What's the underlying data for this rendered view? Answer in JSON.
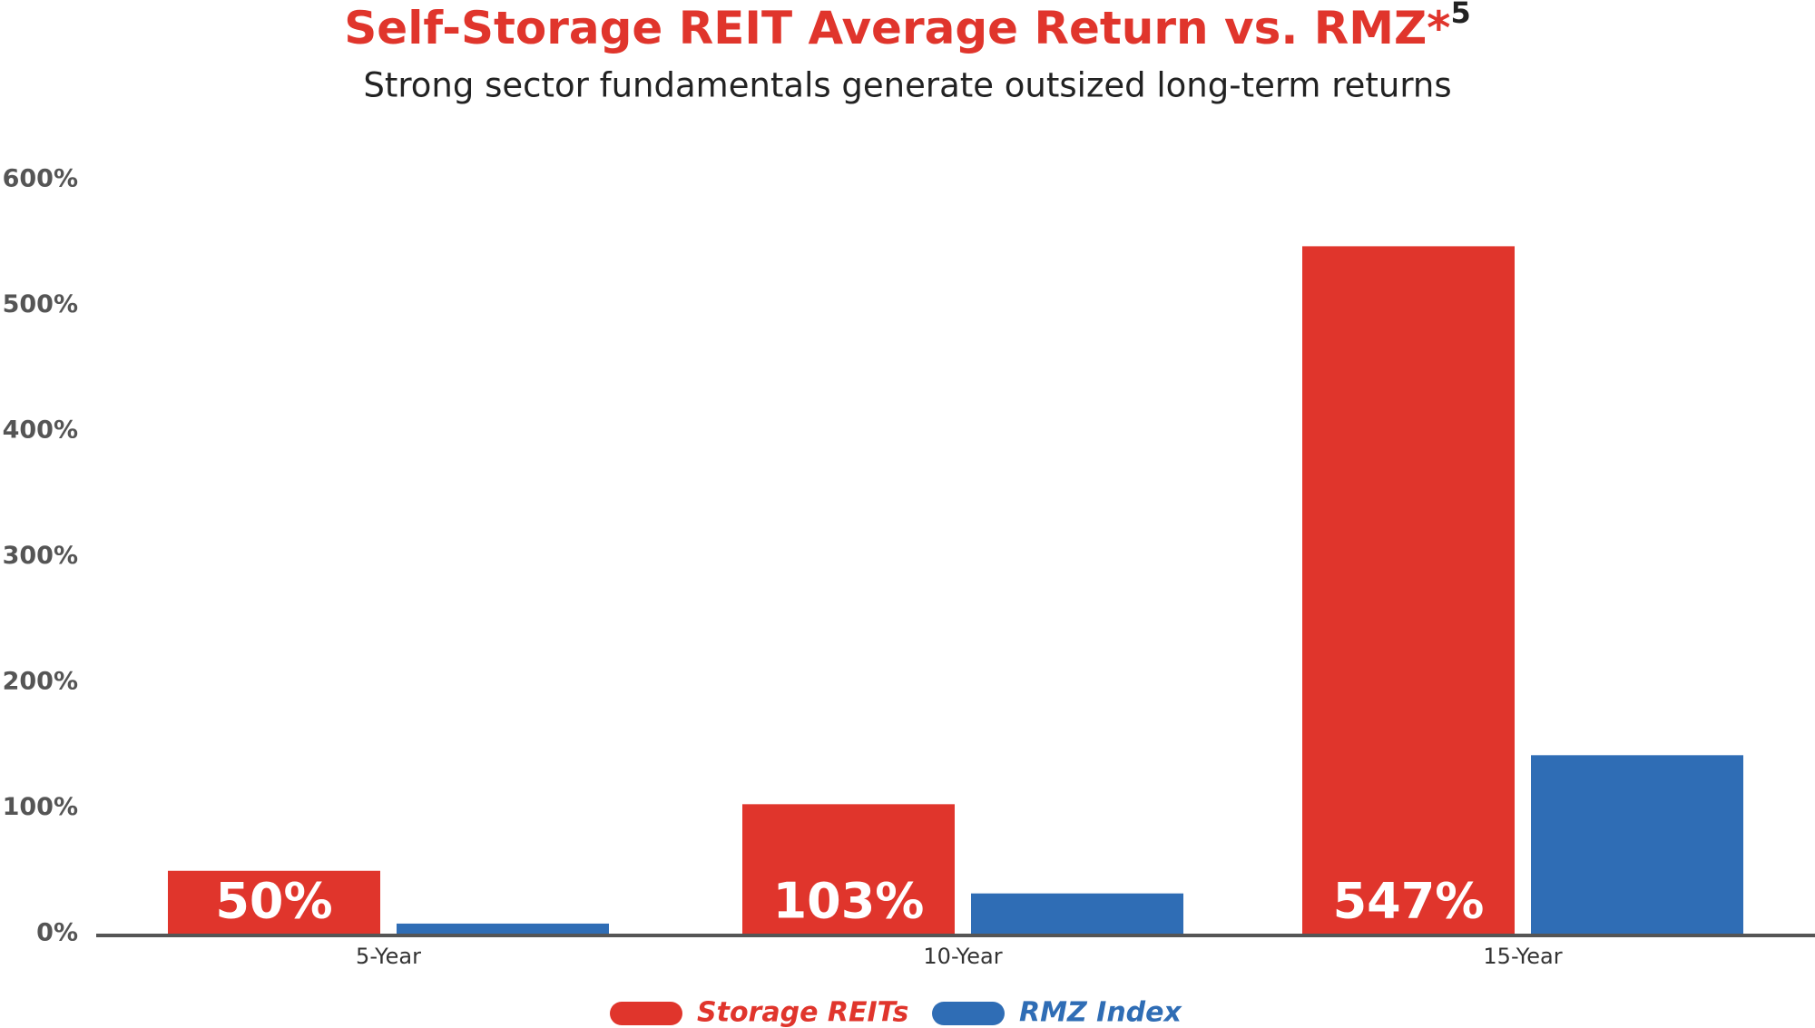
{
  "chart_data": {
    "type": "bar",
    "title": "Self-Storage REIT Average Return vs. RMZ*",
    "title_superscript": "5",
    "subtitle": "Strong sector fundamentals generate outsized long-term returns",
    "categories": [
      "5-Year",
      "10-Year",
      "15-Year"
    ],
    "series": [
      {
        "name": "Storage REITs",
        "color": "#e0352c",
        "values": [
          50,
          103,
          547
        ],
        "value_labels": [
          "50%",
          "103%",
          "547%"
        ]
      },
      {
        "name": "RMZ Index",
        "color": "#2f6db5",
        "values": [
          8,
          32,
          142
        ]
      }
    ],
    "ylim": [
      0,
      600
    ],
    "yticks": [
      {
        "value": 0,
        "label": "0%"
      },
      {
        "value": 100,
        "label": "100%"
      },
      {
        "value": 200,
        "label": "200%"
      },
      {
        "value": 300,
        "label": "300%"
      },
      {
        "value": 400,
        "label": "400%"
      },
      {
        "value": 500,
        "label": "500%"
      },
      {
        "value": 600,
        "label": "600%"
      }
    ],
    "grid": false,
    "legend": "bottom"
  }
}
